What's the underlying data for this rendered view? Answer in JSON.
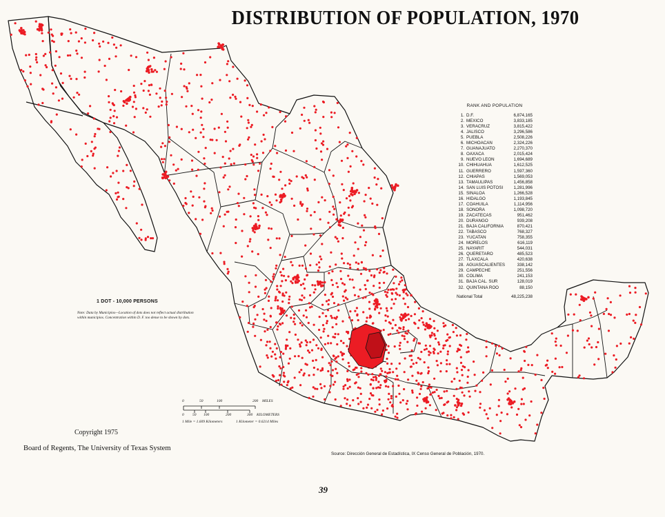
{
  "title": "DISTRIBUTION OF POPULATION, 1970",
  "rank_table": {
    "heading": "RANK AND POPULATION",
    "rows": [
      {
        "rank": "1.",
        "state": "D.F.",
        "population": "6,874,165"
      },
      {
        "rank": "2.",
        "state": "MEXICO",
        "population": "3,833,185"
      },
      {
        "rank": "3.",
        "state": "VERACRUZ",
        "population": "3,815,422"
      },
      {
        "rank": "4.",
        "state": "JALISCO",
        "population": "3,296,586"
      },
      {
        "rank": "5.",
        "state": "PUEBLA",
        "population": "2,508,226"
      },
      {
        "rank": "6.",
        "state": "MICHOACAN",
        "population": "2,324,226"
      },
      {
        "rank": "7.",
        "state": "GUANAJUATO",
        "population": "2,270,370"
      },
      {
        "rank": "8.",
        "state": "OAXACA",
        "population": "2,015,424"
      },
      {
        "rank": "9.",
        "state": "NUEVO LEON",
        "population": "1,694,689"
      },
      {
        "rank": "10.",
        "state": "CHIHUAHUA",
        "population": "1,612,525"
      },
      {
        "rank": "11.",
        "state": "GUERRERO",
        "population": "1,597,360"
      },
      {
        "rank": "12.",
        "state": "CHIAPAS",
        "population": "1,569,053"
      },
      {
        "rank": "13.",
        "state": "TAMAULIPAS",
        "population": "1,456,858"
      },
      {
        "rank": "14.",
        "state": "SAN LUIS POTOSI",
        "population": "1,281,996"
      },
      {
        "rank": "15.",
        "state": "SINALOA",
        "population": "1,266,528"
      },
      {
        "rank": "16.",
        "state": "HIDALGO",
        "population": "1,193,845"
      },
      {
        "rank": "17.",
        "state": "COAHUILA",
        "population": "1,114,956"
      },
      {
        "rank": "18.",
        "state": "SONORA",
        "population": "1,098,720"
      },
      {
        "rank": "19.",
        "state": "ZACATECAS",
        "population": "951,462"
      },
      {
        "rank": "20.",
        "state": "DURANGO",
        "population": "939,208"
      },
      {
        "rank": "21.",
        "state": "BAJA CALIFORNIA",
        "population": "870,421"
      },
      {
        "rank": "22.",
        "state": "TABASCO",
        "population": "768,327"
      },
      {
        "rank": "23.",
        "state": "YUCATAN",
        "population": "758,355"
      },
      {
        "rank": "24.",
        "state": "MORELOS",
        "population": "616,119"
      },
      {
        "rank": "25.",
        "state": "NAYARIT",
        "population": "544,031"
      },
      {
        "rank": "26.",
        "state": "QUERETARO",
        "population": "485,523"
      },
      {
        "rank": "27.",
        "state": "TLAXCALA",
        "population": "420,638"
      },
      {
        "rank": "28.",
        "state": "AGUASCALIENTES",
        "population": "338,142"
      },
      {
        "rank": "29.",
        "state": "CAMPECHE",
        "population": "251,556"
      },
      {
        "rank": "30.",
        "state": "COLIMA",
        "population": "241,153"
      },
      {
        "rank": "31.",
        "state": "BAJA CAL. SUR",
        "population": "128,019"
      },
      {
        "rank": "32.",
        "state": "QUINTANA ROO",
        "population": "88,150"
      }
    ],
    "total_label": "National Total",
    "total_value": "48,225,238"
  },
  "legend": {
    "title": "1 DOT - 10,000 PERSONS",
    "note": "Note: Data by Municipios—Location of dots does not reflect actual distribution within municipios. Concentration within D. F. too dense to be shown by dots."
  },
  "scale_bar": {
    "miles_ticks": [
      "0",
      "50",
      "100",
      "200"
    ],
    "miles_label": "MILES",
    "km_ticks": [
      "0",
      "50",
      "100",
      "200",
      "300"
    ],
    "km_label": "KILOMETERS",
    "conversion_1": "1 Mile = 1.609 Kilometers",
    "conversion_2": "1 Kilometer = 0.6214 Miles"
  },
  "copyright": "Copyright 1975",
  "publisher": "Board of Regents, The University of Texas System",
  "source": "Source:  Dirección General de Estadística, IX Censo General de Población, 1970.",
  "page_number": "39",
  "colors": {
    "dot": "#ec1c24",
    "paper": "#fbf9f4",
    "line": "#111111"
  }
}
